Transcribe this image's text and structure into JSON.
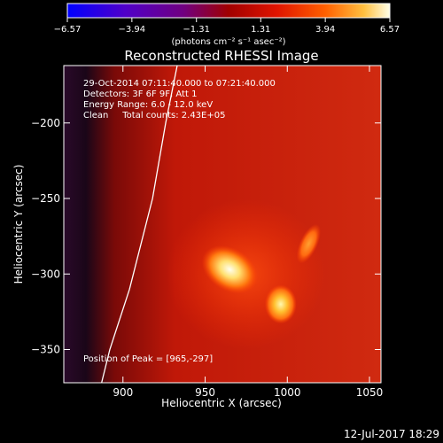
{
  "chart_data": {
    "type": "heatmap",
    "title": "Reconstructed RHESSI Image",
    "xlabel": "Heliocentric X (arcsec)",
    "ylabel": "Heliocentric Y (arcsec)",
    "xlim": [
      864,
      1057
    ],
    "ylim": [
      -372,
      -162
    ],
    "xticks": [
      900,
      950,
      1000,
      1050
    ],
    "yticks": [
      -200,
      -250,
      -300,
      -350
    ],
    "colorbar": {
      "ticks": [
        -6.57,
        -3.94,
        -1.31,
        1.31,
        3.94,
        6.57
      ],
      "tick_labels": [
        "−6.57",
        "−3.94",
        "−1.31",
        "1.31",
        "3.94",
        "6.57"
      ],
      "unit_label": "(photons cm⁻² s⁻¹ asec⁻²)",
      "range": [
        -6.57,
        6.57
      ]
    },
    "annotations": [
      "29-Oct-2014 07:11:40.000 to 07:21:40.000",
      "Detectors: 3F 6F 9F, Att 1",
      "Energy Range: 6.0 - 12.0 keV",
      "Clean     Total counts: 2.43E+05",
      "Position of Peak = [965,-297]"
    ],
    "sources": [
      {
        "x": 965,
        "y": -297,
        "level": 6.57
      },
      {
        "x": 996,
        "y": -320,
        "level": 5.2
      },
      {
        "x": 1013,
        "y": -280,
        "level": 3.6
      }
    ],
    "limb_points": [
      [
        933,
        -162
      ],
      [
        926,
        -200
      ],
      [
        918,
        -250
      ],
      [
        904,
        -310
      ],
      [
        892,
        -350
      ],
      [
        887,
        -372
      ]
    ]
  },
  "footer": {
    "timestamp": "12-Jul-2017 18:29"
  }
}
